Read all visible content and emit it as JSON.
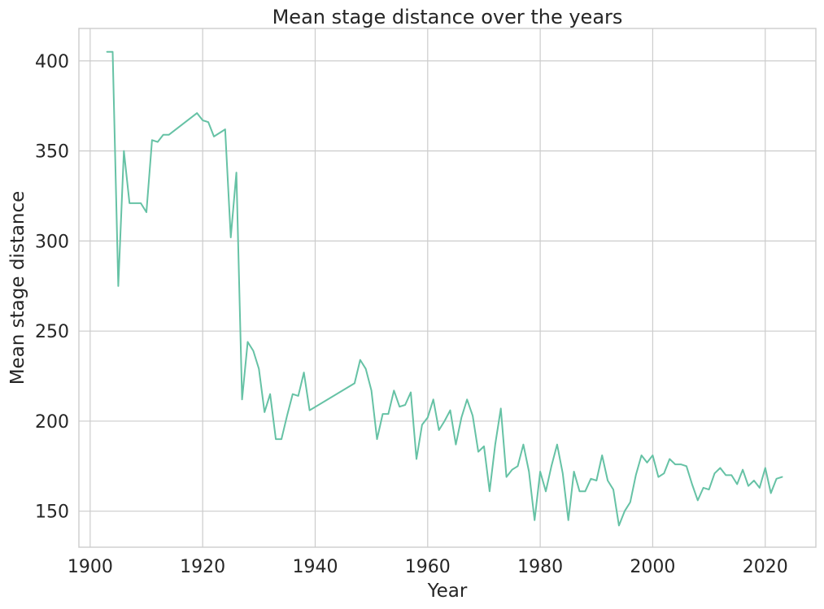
{
  "chart_data": {
    "type": "line",
    "title": "Mean stage distance over the years",
    "xlabel": "Year",
    "ylabel": "Mean stage distance",
    "xlim": [
      1898,
      2029
    ],
    "ylim": [
      130,
      418
    ],
    "xticks": [
      1900,
      1920,
      1940,
      1960,
      1980,
      2000,
      2020
    ],
    "yticks": [
      150,
      200,
      250,
      300,
      350,
      400
    ],
    "grid": true,
    "color": "#66c2a5",
    "series": [
      {
        "x": [
          1903,
          1904,
          1905,
          1906,
          1907,
          1908,
          1909,
          1910,
          1911,
          1912,
          1913,
          1914,
          1919,
          1920,
          1921,
          1922,
          1923,
          1924,
          1925,
          1926,
          1927,
          1928,
          1929,
          1930,
          1931,
          1932,
          1933,
          1934,
          1935,
          1936,
          1937,
          1938,
          1939,
          1947,
          1948,
          1949,
          1950,
          1951,
          1952,
          1953,
          1954,
          1955,
          1956,
          1957,
          1958,
          1959,
          1960,
          1961,
          1962,
          1963,
          1964,
          1965,
          1966,
          1967,
          1968,
          1969,
          1970,
          1971,
          1972,
          1973,
          1974,
          1975,
          1976,
          1977,
          1978,
          1979,
          1980,
          1981,
          1982,
          1983,
          1984,
          1985,
          1986,
          1987,
          1988,
          1989,
          1990,
          1991,
          1992,
          1993,
          1994,
          1995,
          1996,
          1997,
          1998,
          1999,
          2000,
          2001,
          2002,
          2003,
          2004,
          2005,
          2006,
          2007,
          2008,
          2009,
          2010,
          2011,
          2012,
          2013,
          2014,
          2015,
          2016,
          2017,
          2018,
          2019,
          2020,
          2021,
          2022,
          2023
        ],
        "values": [
          405,
          405,
          275,
          350,
          321,
          321,
          321,
          316,
          356,
          355,
          359,
          359,
          371,
          367,
          366,
          358,
          360,
          362,
          302,
          338,
          212,
          244,
          239,
          229,
          205,
          215,
          190,
          190,
          203,
          215,
          214,
          227,
          206,
          221,
          234,
          229,
          217,
          190,
          204,
          204,
          217,
          208,
          209,
          216,
          179,
          198,
          202,
          212,
          195,
          200,
          206,
          187,
          202,
          212,
          203,
          183,
          186,
          161,
          187,
          207,
          169,
          173,
          175,
          187,
          172,
          145,
          172,
          161,
          175,
          187,
          171,
          145,
          172,
          161,
          161,
          168,
          167,
          181,
          167,
          162,
          142,
          150,
          155,
          170,
          181,
          177,
          181,
          169,
          171,
          179,
          176,
          176,
          175,
          165,
          156,
          163,
          162,
          171,
          174,
          170,
          170,
          165,
          173,
          164,
          167,
          163,
          174,
          160,
          168,
          169
        ]
      }
    ]
  }
}
